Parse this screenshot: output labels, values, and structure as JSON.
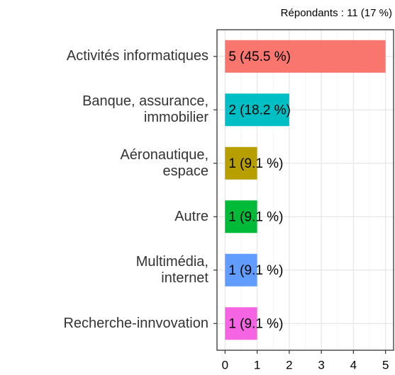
{
  "chart_data": {
    "type": "bar",
    "orientation": "horizontal",
    "subtitle": "Répondants : 11 (17 %)",
    "categories": [
      "Activités informatiques",
      "Banque, assurance,\nimmobilier",
      "Aéronautique,\nespace",
      "Autre",
      "Multimédia,\ninternet",
      "Recherche-innvovation"
    ],
    "values": [
      5,
      2,
      1,
      1,
      1,
      1
    ],
    "value_labels": [
      "5 (45.5 %)",
      "2 (18.2 %)",
      "1 (9.1 %)",
      "1 (9.1 %)",
      "1 (9.1 %)",
      "1 (9.1 %)"
    ],
    "colors": [
      "#F8766D",
      "#00BFC4",
      "#B79F00",
      "#00BA38",
      "#619CFF",
      "#F564E3"
    ],
    "xlim": [
      -0.25,
      5.25
    ],
    "xticks": [
      0,
      1,
      2,
      3,
      4,
      5
    ],
    "grid": true
  }
}
